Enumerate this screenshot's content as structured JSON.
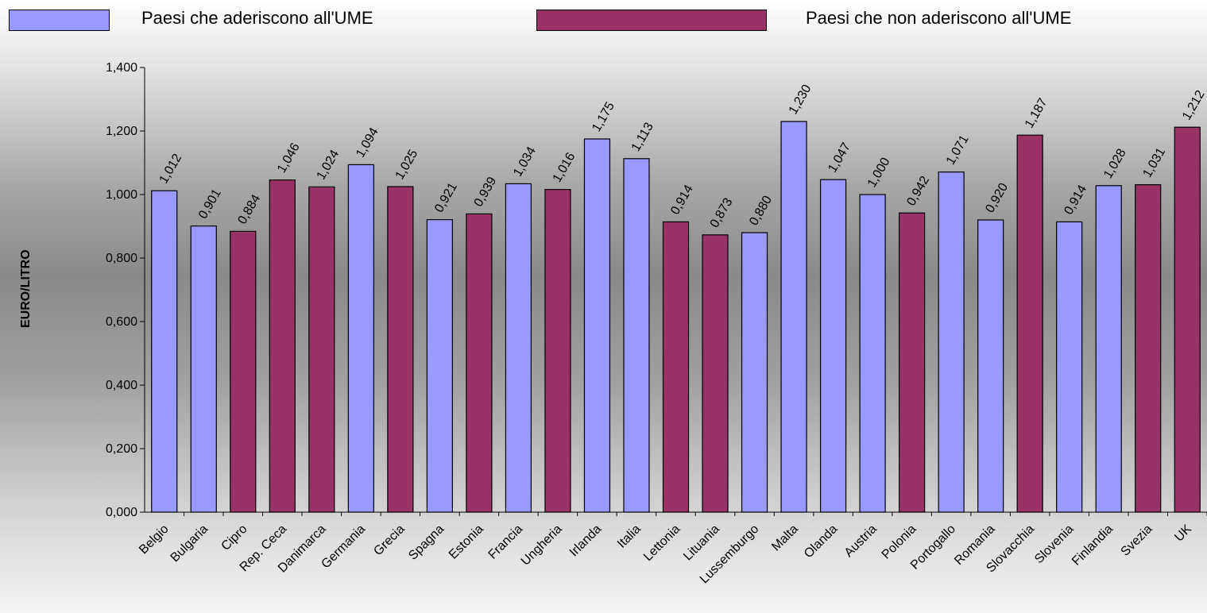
{
  "legend": {
    "ume_label": "Paesi che aderiscono all'UME",
    "non_ume_label": "Paesi che non aderiscono all'UME"
  },
  "colors": {
    "ume": "#9999ff",
    "non_ume": "#993366"
  },
  "chart_data": {
    "type": "bar",
    "title": "",
    "xlabel": "",
    "ylabel": "EURO/LITRO",
    "ylim": [
      0,
      1.4
    ],
    "yticks": [
      "0,000",
      "0,200",
      "0,400",
      "0,600",
      "0,800",
      "1,000",
      "1,200",
      "1,400"
    ],
    "categories": [
      "Belgio",
      "Bulgaria",
      "Cipro",
      "Rep. Ceca",
      "Danimarca",
      "Germania",
      "Grecia",
      "Spagna",
      "Estonia",
      "Francia",
      "Ungheria",
      "Irlanda",
      "Italia",
      "Lettonia",
      "Lituania",
      "Lussemburgo",
      "Malta",
      "Olanda",
      "Austria",
      "Polonia",
      "Portogallo",
      "Romania",
      "Slovacchia",
      "Slovenia",
      "Finlandia",
      "Svezia",
      "UK"
    ],
    "values": [
      1.012,
      0.901,
      0.884,
      1.046,
      1.024,
      1.094,
      1.025,
      0.921,
      0.939,
      1.034,
      1.016,
      1.175,
      1.113,
      0.914,
      0.873,
      0.88,
      1.23,
      1.047,
      1.0,
      0.942,
      1.071,
      0.92,
      1.187,
      0.914,
      1.028,
      1.031,
      1.212
    ],
    "value_labels": [
      "1,012",
      "0,901",
      "0,884",
      "1,046",
      "1,024",
      "1,094",
      "1,025",
      "0,921",
      "0,939",
      "1,034",
      "1,016",
      "1,175",
      "1,113",
      "0,914",
      "0,873",
      "0,880",
      "1,230",
      "1,047",
      "1,000",
      "0,942",
      "1,071",
      "0,920",
      "1,187",
      "0,914",
      "1,028",
      "1,031",
      "1,212"
    ],
    "group": [
      "ume",
      "ume",
      "non_ume",
      "non_ume",
      "non_ume",
      "ume",
      "non_ume",
      "ume",
      "non_ume",
      "ume",
      "non_ume",
      "ume",
      "ume",
      "non_ume",
      "non_ume",
      "ume",
      "ume",
      "ume",
      "ume",
      "non_ume",
      "ume",
      "ume",
      "non_ume",
      "ume",
      "ume",
      "non_ume",
      "non_ume"
    ],
    "legend_position": "top"
  }
}
